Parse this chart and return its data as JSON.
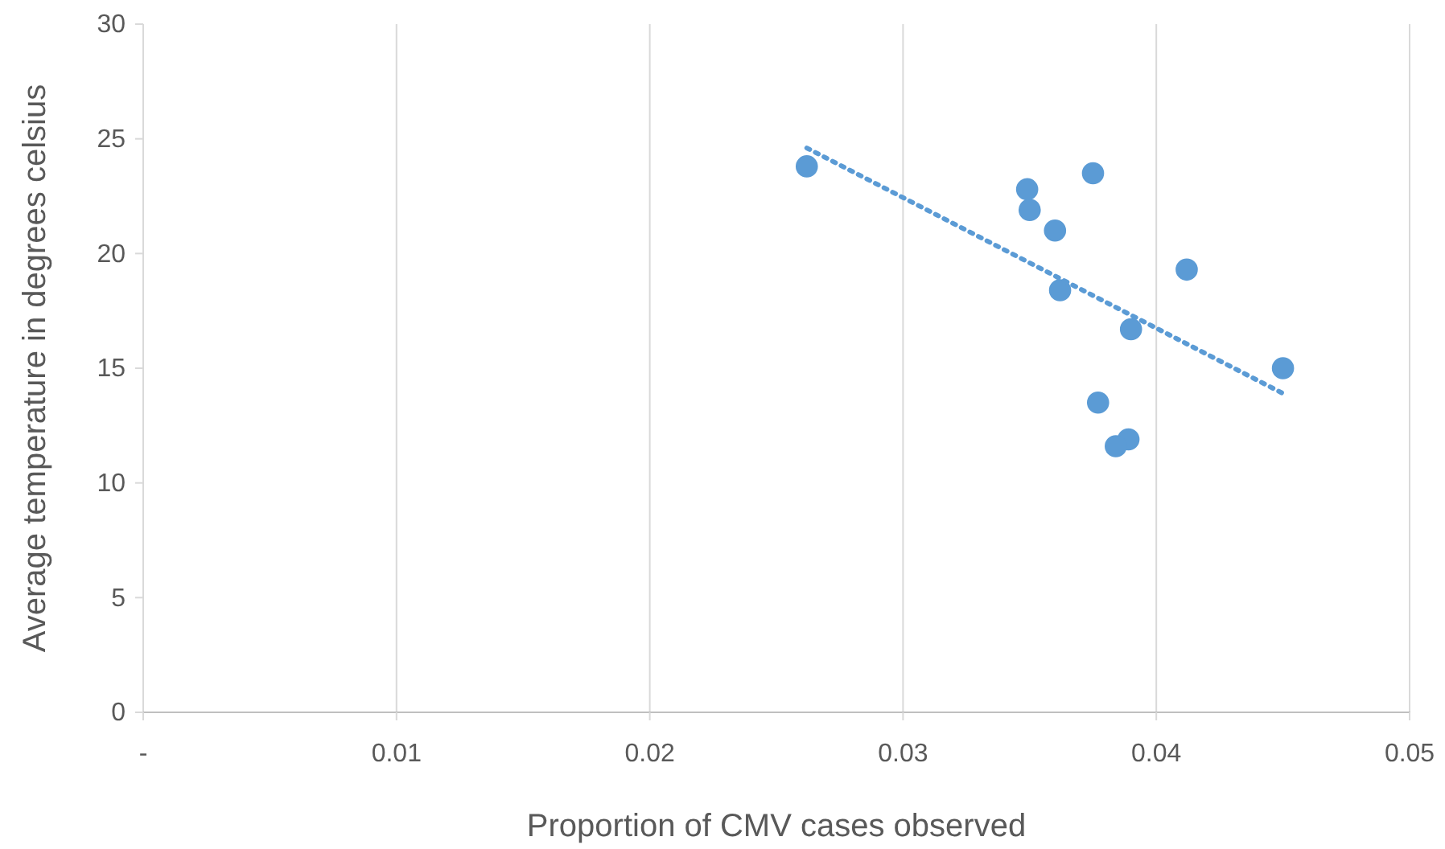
{
  "chart_data": {
    "type": "scatter",
    "xlabel": "Proportion of CMV cases observed",
    "ylabel": "Average temperature in degrees celsius",
    "x": [
      0.0262,
      0.0349,
      0.035,
      0.0375,
      0.036,
      0.0362,
      0.0412,
      0.039,
      0.045,
      0.0377,
      0.0389,
      0.0384
    ],
    "series": [
      {
        "color": "#5b9bd5",
        "values": [
          23.8,
          22.8,
          21.9,
          23.5,
          21.0,
          18.4,
          19.3,
          16.7,
          15.0,
          13.5,
          11.9,
          11.6
        ]
      },
      {
        "type": "line",
        "color": "#5b9bd5",
        "line_style": "dotted",
        "marker": "none",
        "x": [
          0.0262,
          0.045
        ],
        "values": [
          24.6,
          13.9
        ]
      }
    ],
    "xlim": [
      0,
      0.05
    ],
    "xticks": [
      {
        "value": 0,
        "label": "-"
      },
      0.01,
      0.02,
      0.03,
      0.04,
      0.05
    ],
    "ylim": [
      0,
      30
    ],
    "yticks": [
      0,
      5,
      10,
      15,
      20,
      25,
      30
    ],
    "grid": "x",
    "marker": "circle"
  }
}
